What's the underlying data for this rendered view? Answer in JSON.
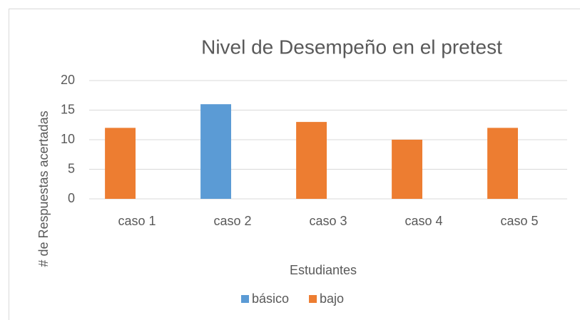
{
  "chart_data": {
    "type": "bar",
    "title": "Nivel de Desempeño en el pretest",
    "x_label": "Estudiantes",
    "y_label": "# de Respuestas acertadas",
    "categories": [
      "caso 1",
      "caso 2",
      "caso 3",
      "caso 4",
      "caso 5"
    ],
    "series": [
      {
        "name": "básico",
        "color": "#5b9bd5",
        "values": [
          null,
          16,
          null,
          null,
          null
        ]
      },
      {
        "name": "bajo",
        "color": "#ed7d31",
        "values": [
          12,
          null,
          13,
          10,
          12
        ]
      }
    ],
    "ylim": [
      0,
      20
    ],
    "yticks": [
      0,
      5,
      10,
      15,
      20
    ],
    "grid": true,
    "legend": "bottom"
  }
}
